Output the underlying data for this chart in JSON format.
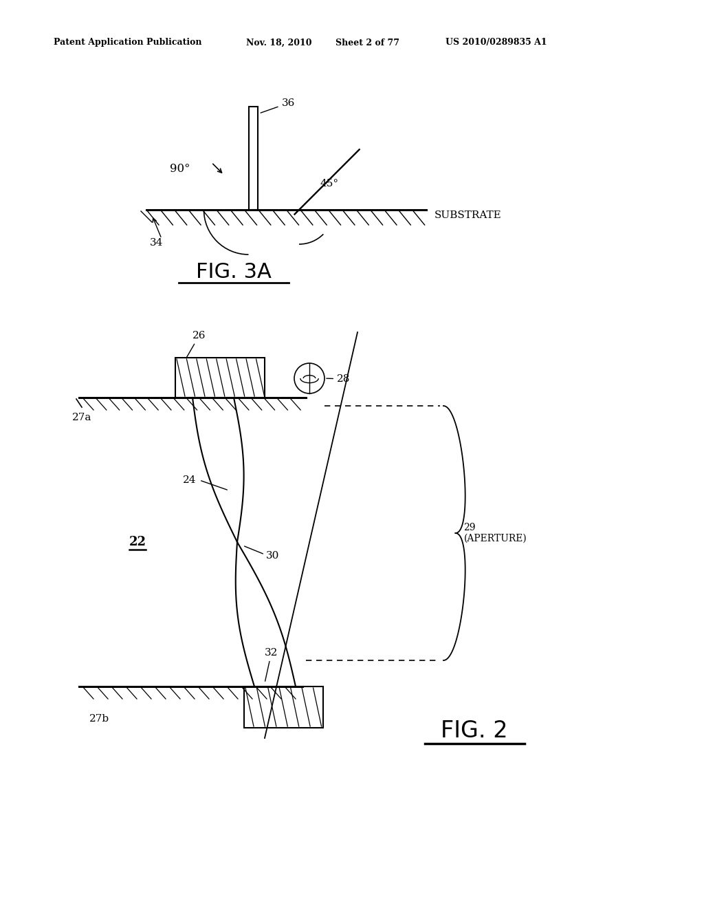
{
  "bg_color": "#ffffff",
  "header_text": "Patent Application Publication",
  "header_date": "Nov. 18, 2010",
  "header_sheet": "Sheet 2 of 77",
  "header_patent": "US 2010/0289835 A1",
  "fig3a_title": "FIG. 3A",
  "fig2_title": "FIG. 2",
  "substrate_label": "SUBSTRATE",
  "label_34": "34",
  "label_36": "36",
  "label_90": "90°",
  "label_45": "45°",
  "label_22": "22",
  "label_24": "24",
  "label_26": "26",
  "label_27a": "27a",
  "label_27b": "27b",
  "label_28": "28",
  "label_29": "29\n(APERTURE)",
  "label_30": "30",
  "label_32": "32"
}
